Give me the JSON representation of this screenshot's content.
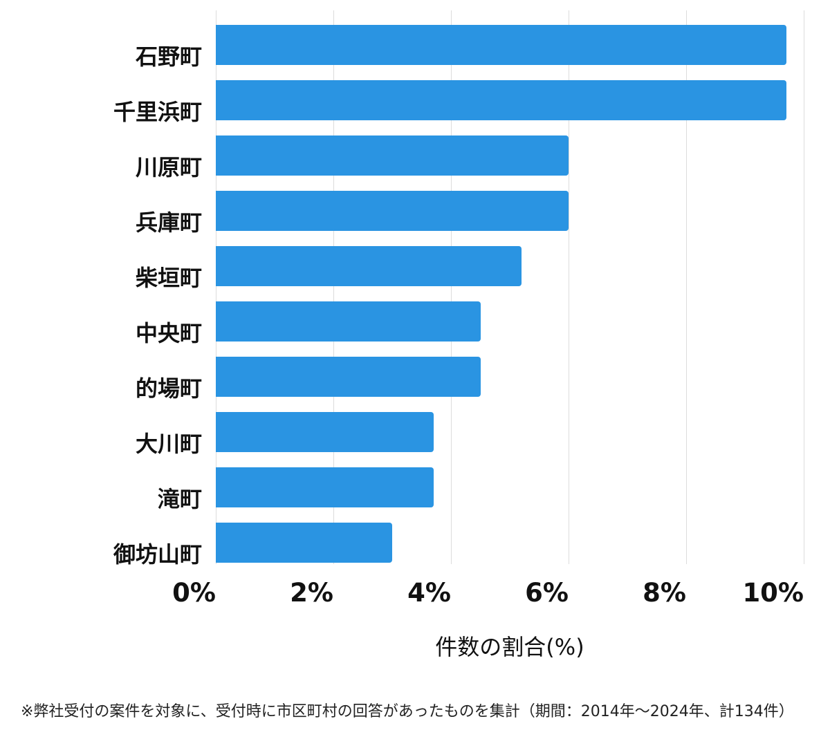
{
  "chart_data": {
    "type": "bar",
    "orientation": "horizontal",
    "title": "",
    "categories": [
      "石野町",
      "千里浜町",
      "川原町",
      "兵庫町",
      "柴垣町",
      "中央町",
      "的場町",
      "大川町",
      "滝町",
      "御坊山町"
    ],
    "values": [
      9.7,
      9.7,
      6.0,
      6.0,
      5.2,
      4.5,
      4.5,
      3.7,
      3.7,
      3.0
    ],
    "xlabel": "件数の割合(%)",
    "ylabel": "",
    "xlim": [
      0,
      10
    ],
    "x_ticks": [
      "0%",
      "2%",
      "4%",
      "6%",
      "8%",
      "10%"
    ],
    "x_tick_values": [
      0,
      2,
      4,
      6,
      8,
      10
    ],
    "grid": true,
    "legend": false,
    "bar_color": "#2A94E2",
    "gridline_color": "#dcdcdc",
    "footnote": "※弊社受付の案件を対象に、受付時に市区町村の回答があったものを集計（期間：2014年～2024年、計134件）"
  }
}
